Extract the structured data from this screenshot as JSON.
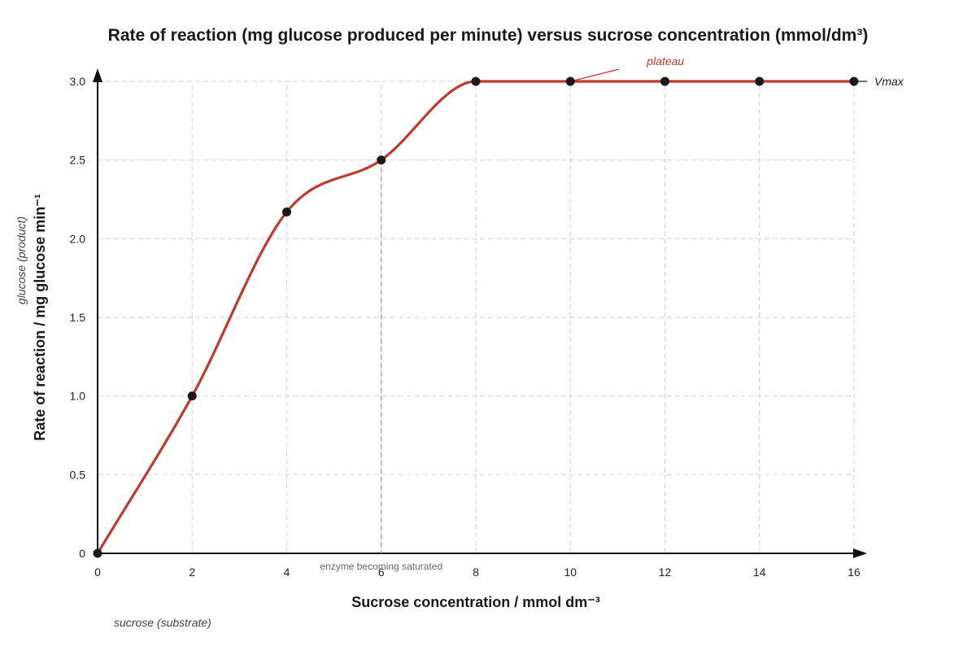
{
  "chart_data": {
    "type": "line",
    "title": "Rate of reaction (mg glucose produced per minute) versus sucrose concentration (mmol/dm³)",
    "xlabel": "Sucrose concentration / mmol dm⁻³",
    "ylabel": "Rate of reaction / mg glucose min⁻¹",
    "x_sublabel": "sucrose (substrate)",
    "y_sublabel": "glucose (product)",
    "xlim": [
      0,
      16
    ],
    "ylim": [
      0,
      3.0
    ],
    "x_ticks": [
      0,
      2,
      4,
      6,
      8,
      10,
      12,
      14,
      16
    ],
    "y_ticks": [
      0,
      0.5,
      1.0,
      1.5,
      2.0,
      2.5,
      3.0
    ],
    "y_tick_labels": [
      "0",
      "0.5",
      "1.0",
      "1.5",
      "2.0",
      "2.5",
      "3.0"
    ],
    "grid": true,
    "series": [
      {
        "x": [
          0,
          2,
          4,
          6,
          8,
          10,
          12,
          14,
          16
        ],
        "values": [
          0,
          1.0,
          2.17,
          2.5,
          3.0,
          3.0,
          3.0,
          3.0,
          3.0
        ],
        "color": "#c0392b",
        "marker_color": "#1a1a1a"
      }
    ],
    "annotations": {
      "saturation_note": "enzyme becoming saturated",
      "saturation_x": 6,
      "plateau_label": "plateau",
      "plateau_x": 10,
      "vmax_label": "Vmax",
      "vmax_y": 3.0
    }
  }
}
